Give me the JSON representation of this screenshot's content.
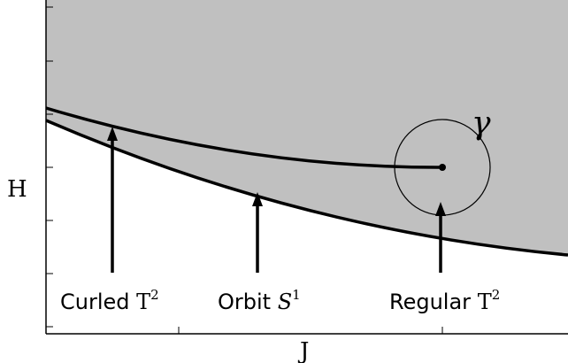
{
  "axes": {
    "x_label": "J",
    "y_label": "H"
  },
  "annotations": {
    "gamma": "γ",
    "curled_text": "Curled ",
    "curled_math_base": "T",
    "curled_math_sup": "2",
    "orbit_text": "Orbit ",
    "orbit_math_base": "S",
    "orbit_math_sup": "1",
    "regular_text": "Regular ",
    "regular_math_base": "T",
    "regular_math_sup": "2"
  },
  "colors": {
    "region_fill": "#c0c0c0",
    "stroke": "#000000",
    "background": "#ffffff"
  }
}
